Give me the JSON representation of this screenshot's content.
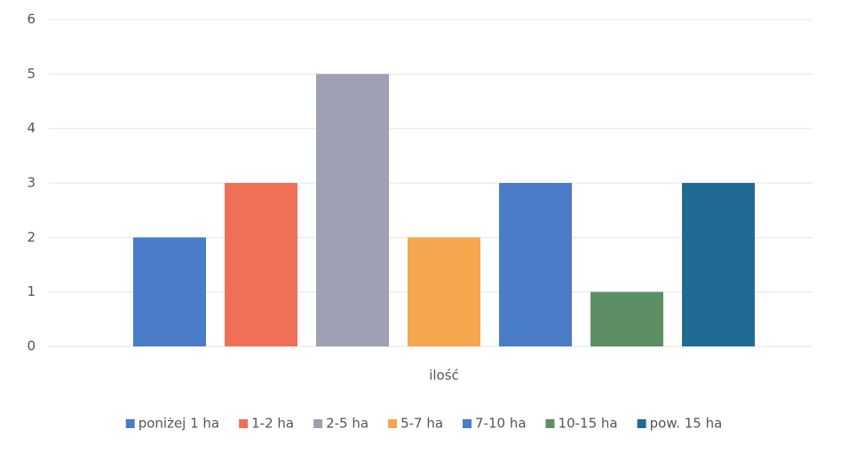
{
  "chart_data": {
    "type": "bar",
    "categories": [
      "ilość"
    ],
    "series": [
      {
        "name": "poniżej 1 ha",
        "color": "#4a7cc7",
        "values": [
          2
        ]
      },
      {
        "name": "1-2 ha",
        "color": "#ef6f57",
        "values": [
          3
        ]
      },
      {
        "name": "2-5 ha",
        "color": "#9ea0b4",
        "values": [
          5
        ]
      },
      {
        "name": "5-7 ha",
        "color": "#f6a64c",
        "values": [
          2
        ]
      },
      {
        "name": "7-10 ha",
        "color": "#4a7cc7",
        "values": [
          3
        ]
      },
      {
        "name": "10-15 ha",
        "color": "#5c8f63",
        "values": [
          1
        ]
      },
      {
        "name": "pow. 15 ha",
        "color": "#1f6b94",
        "values": [
          3
        ]
      }
    ],
    "ylim": [
      0,
      6
    ],
    "yticks": [
      0,
      1,
      2,
      3,
      4,
      5,
      6
    ],
    "grid": true,
    "legend": "bottom"
  }
}
